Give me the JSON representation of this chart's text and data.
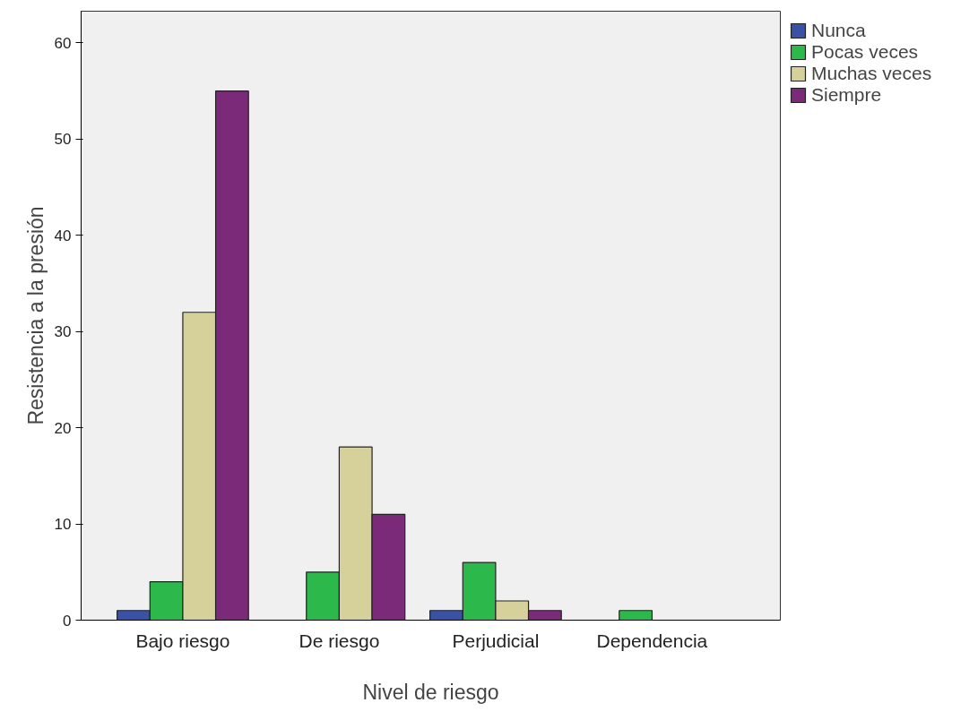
{
  "chart_data": {
    "type": "bar",
    "xlabel": "Nivel de riesgo",
    "ylabel": "Resistencia a la presión",
    "categories": [
      "Bajo riesgo",
      "De riesgo",
      "Perjudicial",
      "Dependencia"
    ],
    "series": [
      {
        "name": "Nunca",
        "color": "#3a52a6",
        "values": [
          1,
          0,
          1,
          0
        ]
      },
      {
        "name": "Pocas veces",
        "color": "#2db84b",
        "values": [
          4,
          5,
          6,
          1
        ]
      },
      {
        "name": "Muchas veces",
        "color": "#d6d09a",
        "values": [
          32,
          18,
          2,
          0
        ]
      },
      {
        "name": "Siempre",
        "color": "#7b2a7a",
        "values": [
          55,
          11,
          1,
          0
        ]
      }
    ],
    "ylim": [
      0,
      63.3
    ],
    "yticks": [
      0,
      10,
      20,
      30,
      40,
      50,
      60
    ],
    "grid": false,
    "legend": "top right"
  }
}
